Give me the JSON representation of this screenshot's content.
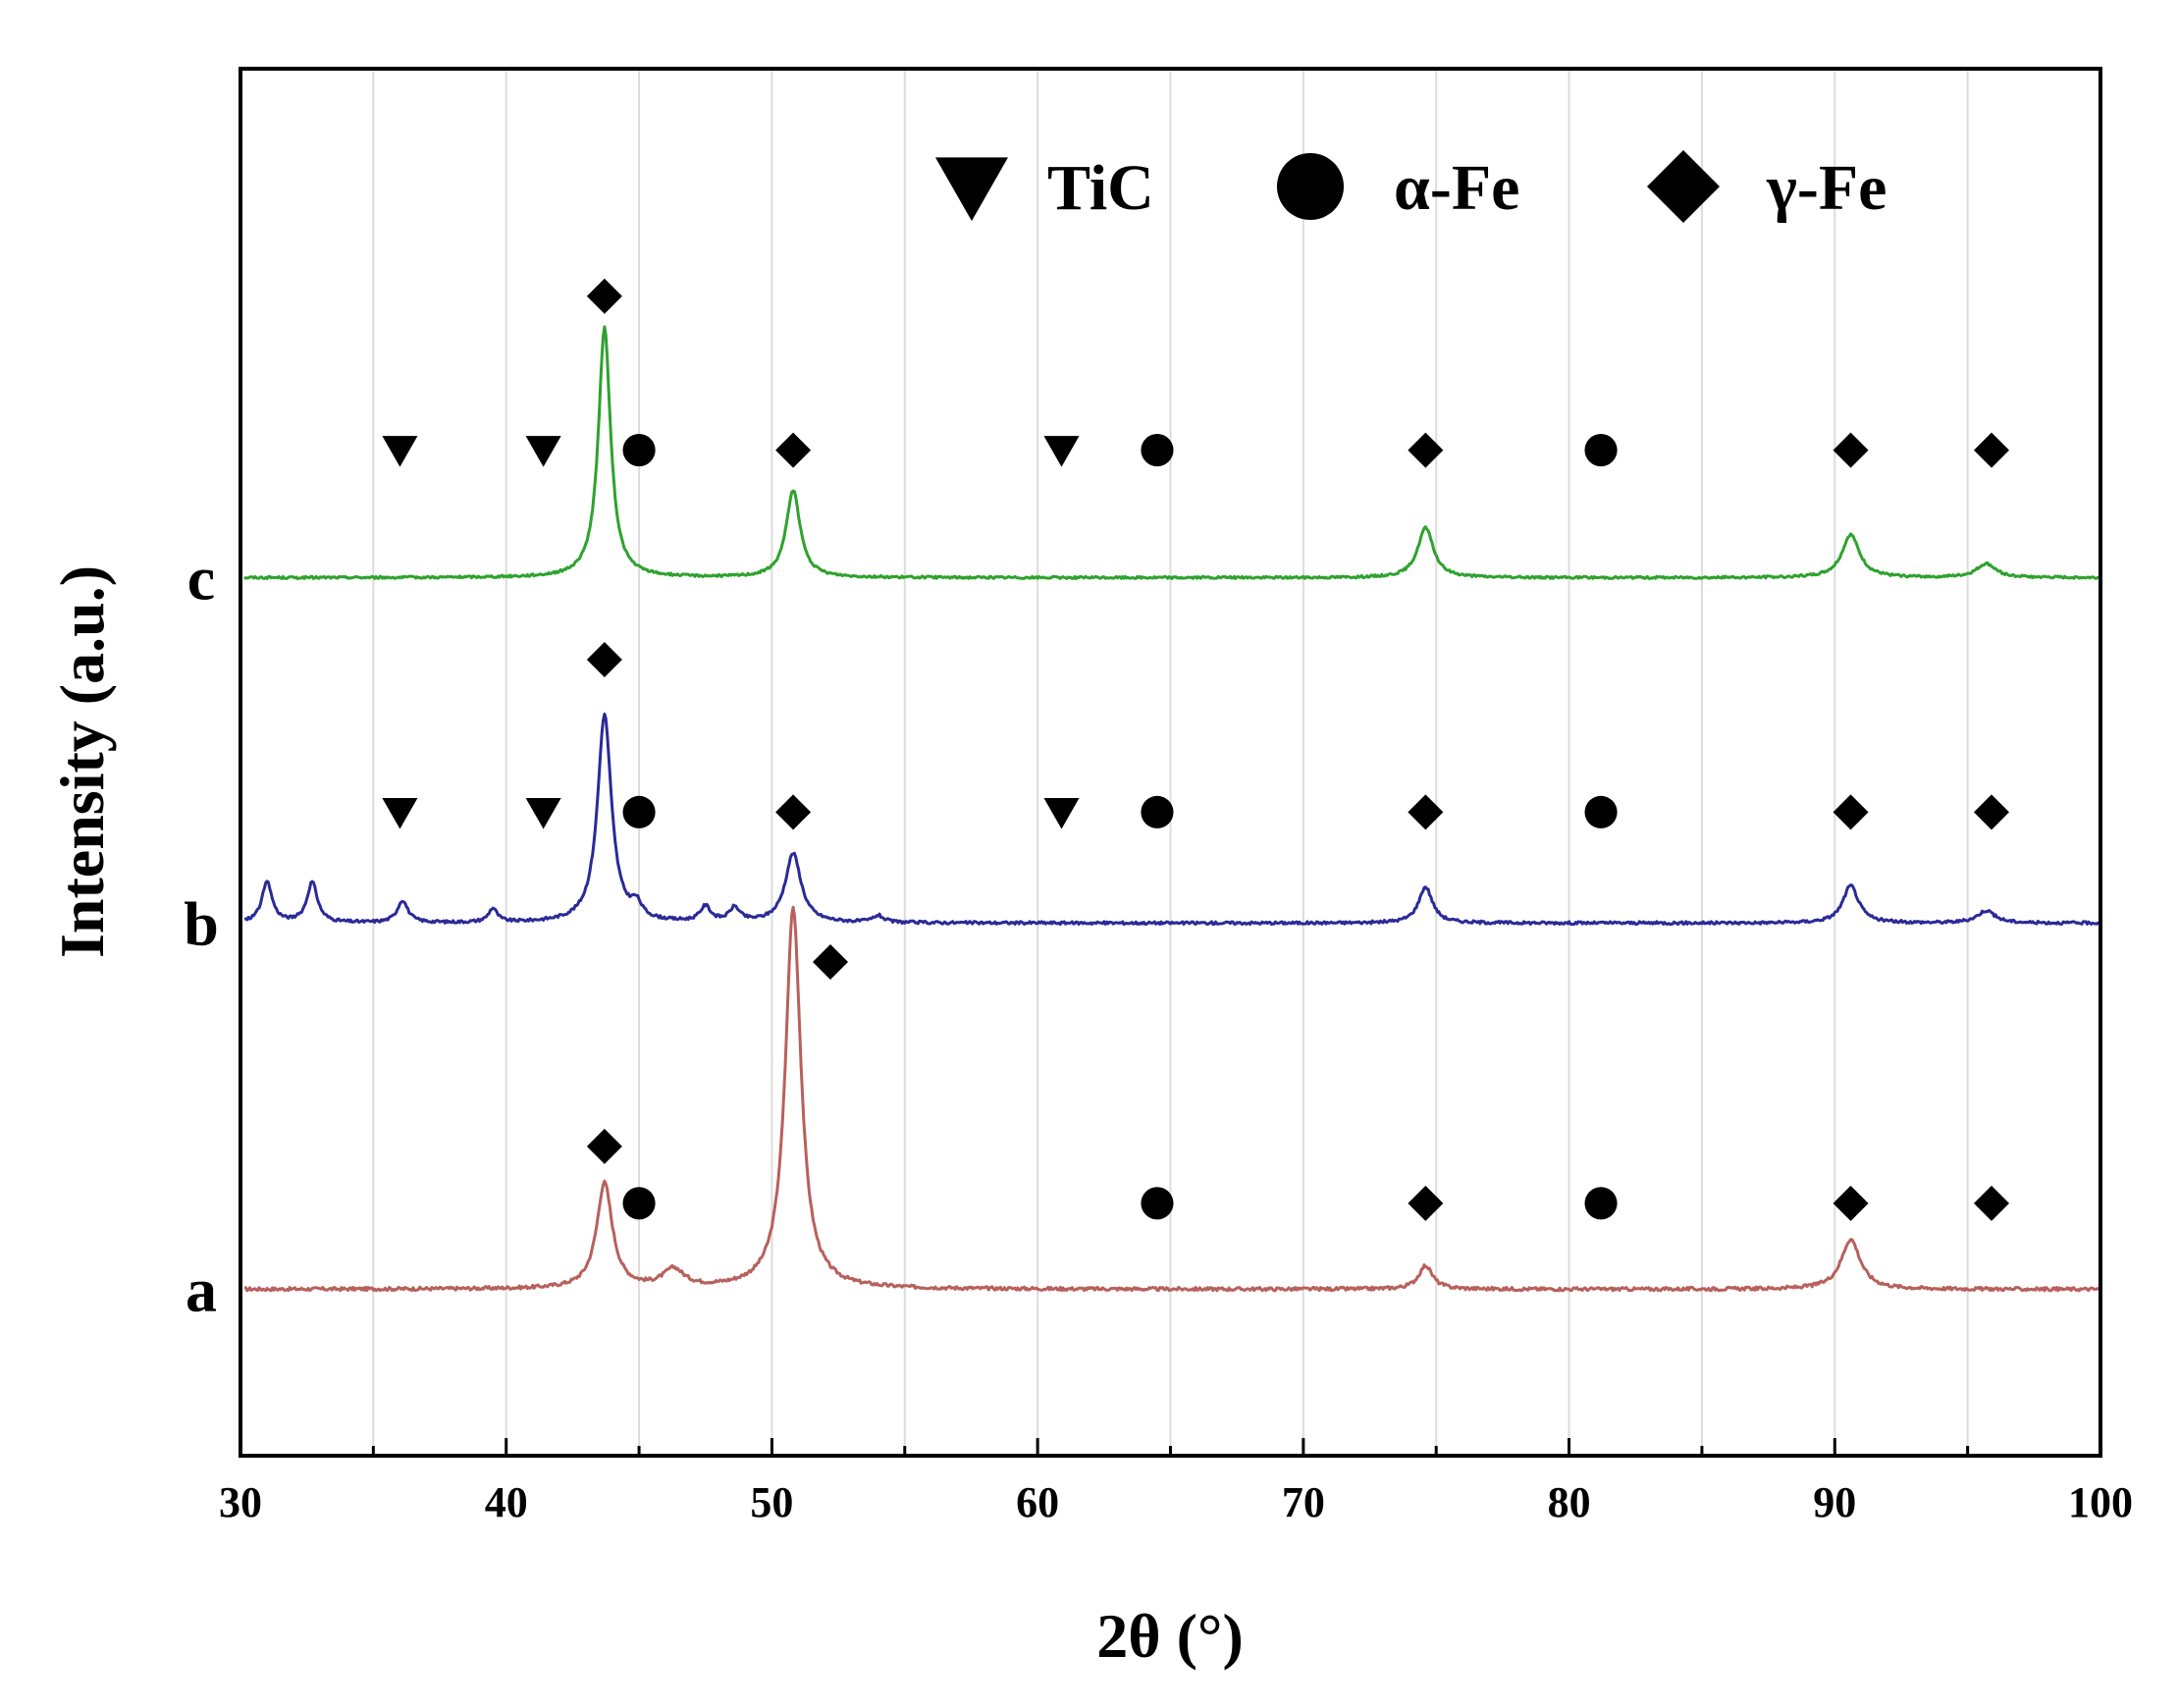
{
  "chart_data": {
    "type": "line",
    "title": "",
    "xlabel": "2θ (°)",
    "ylabel": "Intensity (a.u.)",
    "xlim": [
      30,
      100
    ],
    "ylim": [
      0,
      100
    ],
    "xticks": [
      30,
      40,
      50,
      60,
      70,
      80,
      90,
      100
    ],
    "grid_x": [
      35,
      40,
      45,
      50,
      55,
      60,
      65,
      70,
      75,
      80,
      85,
      90,
      95
    ],
    "grid": true,
    "legend_position": "top-right",
    "legend": [
      {
        "marker": "triangle-down",
        "label": "TiC"
      },
      {
        "marker": "circle",
        "label": "α-Fe"
      },
      {
        "marker": "diamond",
        "label": "γ-Fe"
      }
    ],
    "series": [
      {
        "name": "a",
        "color": "#b8605c",
        "baseline": 12,
        "noise": 0.12,
        "peaks": [
          {
            "x": 43.7,
            "height": 7.6,
            "width": 0.45
          },
          {
            "x": 46.3,
            "height": 1.3,
            "width": 0.6
          },
          {
            "x": 50.8,
            "height": 27.5,
            "width": 0.45
          },
          {
            "x": 74.6,
            "height": 1.7,
            "width": 0.4
          },
          {
            "x": 90.6,
            "height": 3.6,
            "width": 0.55
          }
        ],
        "markers": [
          {
            "x": 43.7,
            "y": 22.3,
            "shape": "diamond"
          },
          {
            "x": 45.0,
            "y": 18.2,
            "shape": "circle"
          },
          {
            "x": 64.5,
            "y": 18.2,
            "shape": "circle"
          },
          {
            "x": 74.6,
            "y": 18.2,
            "shape": "diamond"
          },
          {
            "x": 81.2,
            "y": 18.2,
            "shape": "circle"
          },
          {
            "x": 90.6,
            "y": 18.2,
            "shape": "diamond"
          },
          {
            "x": 95.9,
            "y": 18.2,
            "shape": "diamond"
          },
          {
            "x": 52.2,
            "y": 35.6,
            "shape": "diamond"
          }
        ]
      },
      {
        "name": "b",
        "color": "#2a2a98",
        "baseline": 38.4,
        "noise": 0.1,
        "peaks": [
          {
            "x": 31.0,
            "height": 2.9,
            "width": 0.3
          },
          {
            "x": 32.7,
            "height": 2.9,
            "width": 0.3
          },
          {
            "x": 36.1,
            "height": 1.6,
            "width": 0.3
          },
          {
            "x": 39.5,
            "height": 1.0,
            "width": 0.25
          },
          {
            "x": 43.7,
            "height": 15.0,
            "width": 0.4
          },
          {
            "x": 44.9,
            "height": 1.0,
            "width": 0.3
          },
          {
            "x": 47.5,
            "height": 1.1,
            "width": 0.3
          },
          {
            "x": 48.6,
            "height": 1.0,
            "width": 0.3
          },
          {
            "x": 50.8,
            "height": 5.0,
            "width": 0.45
          },
          {
            "x": 54.0,
            "height": 0.5,
            "width": 0.3
          },
          {
            "x": 74.6,
            "height": 2.6,
            "width": 0.4
          },
          {
            "x": 90.6,
            "height": 2.7,
            "width": 0.45
          },
          {
            "x": 95.7,
            "height": 0.9,
            "width": 0.5
          }
        ],
        "markers": [
          {
            "x": 43.7,
            "y": 57.4,
            "shape": "diamond"
          },
          {
            "x": 36.0,
            "y": 46.4,
            "shape": "triangle"
          },
          {
            "x": 41.4,
            "y": 46.4,
            "shape": "triangle"
          },
          {
            "x": 45.0,
            "y": 46.4,
            "shape": "circle"
          },
          {
            "x": 50.8,
            "y": 46.4,
            "shape": "diamond"
          },
          {
            "x": 60.9,
            "y": 46.4,
            "shape": "triangle"
          },
          {
            "x": 64.5,
            "y": 46.4,
            "shape": "circle"
          },
          {
            "x": 74.6,
            "y": 46.4,
            "shape": "diamond"
          },
          {
            "x": 81.2,
            "y": 46.4,
            "shape": "circle"
          },
          {
            "x": 90.6,
            "y": 46.4,
            "shape": "diamond"
          },
          {
            "x": 95.9,
            "y": 46.4,
            "shape": "diamond"
          }
        ]
      },
      {
        "name": "c",
        "color": "#2ea22e",
        "baseline": 63.3,
        "noise": 0.08,
        "peaks": [
          {
            "x": 43.7,
            "height": 18.0,
            "width": 0.35
          },
          {
            "x": 50.8,
            "height": 6.3,
            "width": 0.4
          },
          {
            "x": 74.6,
            "height": 3.6,
            "width": 0.45
          },
          {
            "x": 90.6,
            "height": 3.1,
            "width": 0.5
          },
          {
            "x": 95.7,
            "height": 1.0,
            "width": 0.55
          }
        ],
        "markers": [
          {
            "x": 43.7,
            "y": 83.6,
            "shape": "diamond"
          },
          {
            "x": 36.0,
            "y": 72.5,
            "shape": "triangle"
          },
          {
            "x": 41.4,
            "y": 72.5,
            "shape": "triangle"
          },
          {
            "x": 45.0,
            "y": 72.5,
            "shape": "circle"
          },
          {
            "x": 50.8,
            "y": 72.5,
            "shape": "diamond"
          },
          {
            "x": 60.9,
            "y": 72.5,
            "shape": "triangle"
          },
          {
            "x": 64.5,
            "y": 72.5,
            "shape": "circle"
          },
          {
            "x": 74.6,
            "y": 72.5,
            "shape": "diamond"
          },
          {
            "x": 81.2,
            "y": 72.5,
            "shape": "circle"
          },
          {
            "x": 90.6,
            "y": 72.5,
            "shape": "diamond"
          },
          {
            "x": 95.9,
            "y": 72.5,
            "shape": "diamond"
          }
        ]
      }
    ]
  }
}
